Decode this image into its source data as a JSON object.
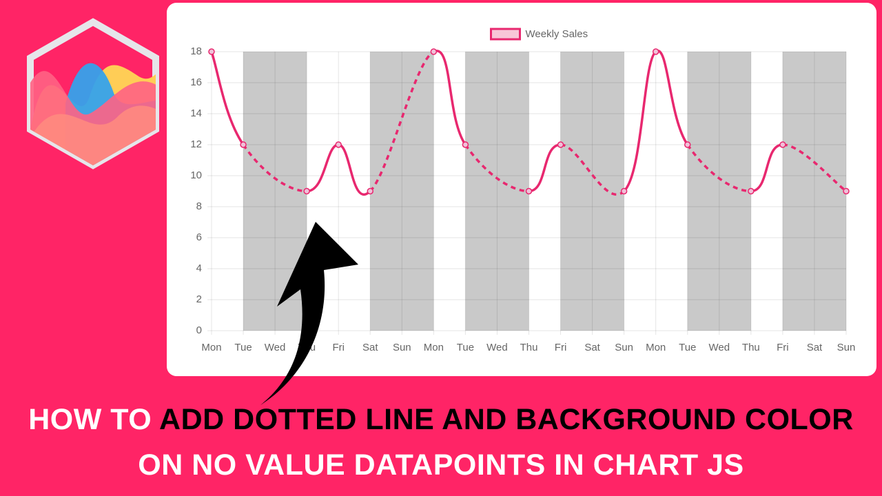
{
  "chart_data": {
    "type": "line",
    "legend": "top",
    "categories": [
      "Mon",
      "Tue",
      "Wed",
      "Thu",
      "Fri",
      "Sat",
      "Sun",
      "Mon",
      "Tue",
      "Wed",
      "Thu",
      "Fri",
      "Sat",
      "Sun",
      "Mon",
      "Tue",
      "Wed",
      "Thu",
      "Fri",
      "Sat",
      "Sun"
    ],
    "series": [
      {
        "name": "Weekly Sales",
        "color": "#e8286f",
        "values": [
          18,
          12,
          null,
          9,
          12,
          9,
          null,
          18,
          12,
          null,
          9,
          12,
          null,
          9,
          18,
          12,
          null,
          9,
          12,
          null,
          9
        ]
      }
    ],
    "ylim": [
      0,
      18
    ],
    "yticks": [
      0,
      2,
      4,
      6,
      8,
      10,
      12,
      14,
      16,
      18
    ],
    "grid": true,
    "gap_color": "#c9c9c9",
    "gap_line": "dotted"
  },
  "headline": [
    {
      "text": "HOW TO",
      "color": "#ffffff"
    },
    {
      "text": "ADD DOTTED LINE AND BACKGROUND COLOR",
      "color": "#000000"
    },
    {
      "text": "ON NO VALUE DATAPOINTS IN CHART JS",
      "color": "#ffffff"
    }
  ]
}
